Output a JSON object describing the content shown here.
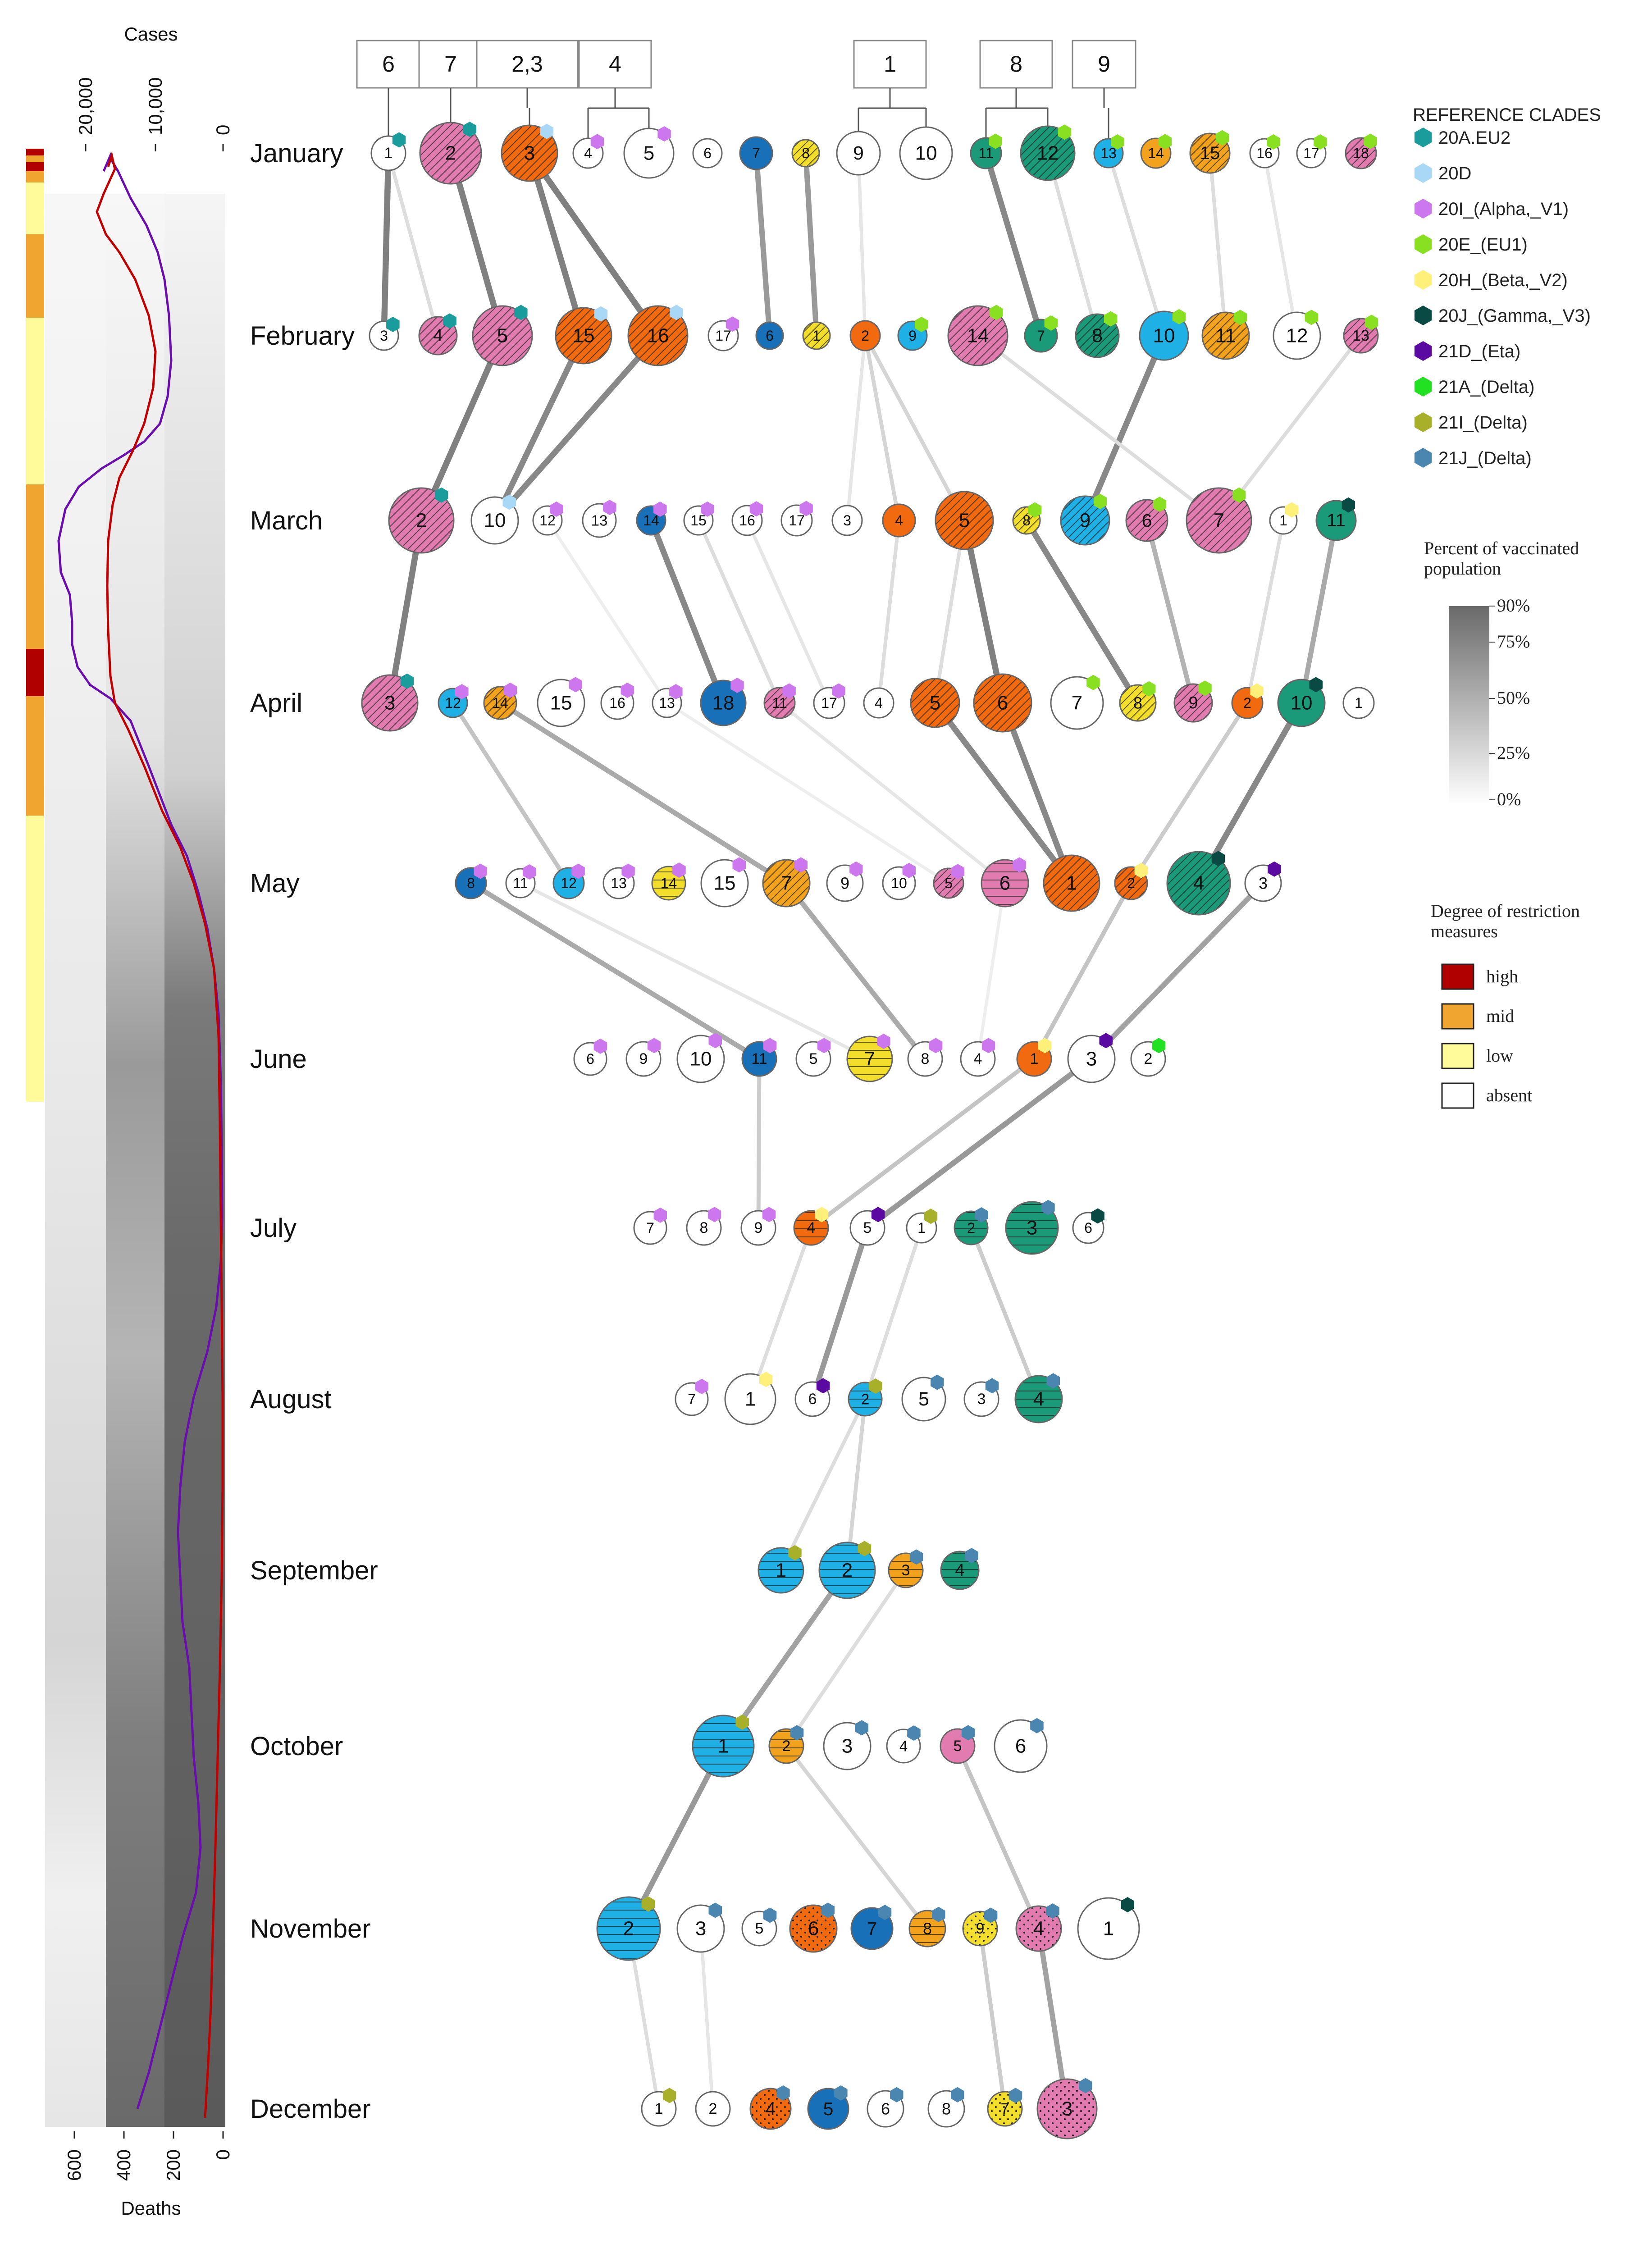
{
  "months": [
    "January",
    "February",
    "March",
    "April",
    "May",
    "June",
    "July",
    "August",
    "September",
    "October",
    "November",
    "December"
  ],
  "axes": {
    "cases_label": "Cases",
    "deaths_label": "Deaths",
    "cases_ticks": [
      "20,000",
      "10,000",
      "0"
    ],
    "deaths_ticks": [
      "600",
      "400",
      "200",
      "0"
    ]
  },
  "colors": {
    "cases_line": "#6a0dad",
    "deaths_line": "#c00000",
    "orange": "#f26a10",
    "pink": "#e27bb0",
    "teal": "#1a9a78",
    "sky": "#1fb0e6",
    "navy": "#1770b8",
    "gold": "#f2a21c",
    "yellow": "#f4de2c"
  },
  "groups": [
    {
      "label": "6"
    },
    {
      "label": "7"
    },
    {
      "label": "2,3"
    },
    {
      "label": "4"
    },
    {
      "label": "1"
    },
    {
      "label": "8"
    },
    {
      "label": "9"
    }
  ],
  "legend_clades": {
    "title": "REFERENCE CLADES",
    "items": [
      {
        "name": "20A.EU2",
        "color": "#1a9c9c",
        "shape": "hexagon"
      },
      {
        "name": "20D",
        "color": "#a8d8f5",
        "shape": "hexagon"
      },
      {
        "name": "20I_(Alpha,_V1)",
        "color": "#cc77ee",
        "shape": "hexagon"
      },
      {
        "name": "20E_(EU1)",
        "color": "#88e020",
        "shape": "hexagon"
      },
      {
        "name": "20H_(Beta,_V2)",
        "color": "#fff07a",
        "shape": "hexagon"
      },
      {
        "name": "20J_(Gamma,_V3)",
        "color": "#0a4a44",
        "shape": "hexagon"
      },
      {
        "name": "21D_(Eta)",
        "color": "#5a0aa0",
        "shape": "hexagon"
      },
      {
        "name": "21A_(Delta)",
        "color": "#22e022",
        "shape": "hexagon"
      },
      {
        "name": "21I_(Delta)",
        "color": "#a8b02a",
        "shape": "hexagon"
      },
      {
        "name": "21J_(Delta)",
        "color": "#4a86b0",
        "shape": "hexagon"
      }
    ]
  },
  "legend_vaccinated": {
    "title_line1": "Percent of vaccinated",
    "title_line2": "population",
    "ticks": [
      "90%",
      "75%",
      "50%",
      "25%",
      "0%"
    ]
  },
  "legend_restriction": {
    "title_line1": "Degree of restriction",
    "title_line2": "measures",
    "items": [
      {
        "name": "high",
        "color": "#b00000"
      },
      {
        "name": "mid",
        "color": "#f0a530"
      },
      {
        "name": "low",
        "color": "#fffa9a"
      },
      {
        "name": "absent",
        "color": "#ffffff"
      }
    ]
  },
  "nodes": [
    {
      "id": "jan1",
      "label": "1"
    },
    {
      "id": "jan2",
      "label": "2"
    },
    {
      "id": "jan3",
      "label": "3"
    },
    {
      "id": "jan4",
      "label": "4"
    },
    {
      "id": "jan5",
      "label": "5"
    },
    {
      "id": "jan6",
      "label": "6"
    },
    {
      "id": "jan7",
      "label": "7"
    },
    {
      "id": "jan8",
      "label": "8"
    },
    {
      "id": "jan9",
      "label": "9"
    },
    {
      "id": "jan10",
      "label": "10"
    },
    {
      "id": "jan11",
      "label": "11"
    },
    {
      "id": "jan12",
      "label": "12"
    },
    {
      "id": "jan13",
      "label": "13"
    },
    {
      "id": "jan14",
      "label": "14"
    },
    {
      "id": "jan15",
      "label": "15"
    },
    {
      "id": "jan16",
      "label": "16"
    },
    {
      "id": "jan17",
      "label": "17"
    },
    {
      "id": "jan18",
      "label": "18"
    },
    {
      "id": "feb3",
      "label": "3"
    },
    {
      "id": "feb4",
      "label": "4"
    },
    {
      "id": "feb5",
      "label": "5"
    },
    {
      "id": "feb15",
      "label": "15"
    },
    {
      "id": "feb16",
      "label": "16"
    },
    {
      "id": "feb17",
      "label": "17"
    },
    {
      "id": "feb6",
      "label": "6"
    },
    {
      "id": "feb1",
      "label": "1"
    },
    {
      "id": "feb2",
      "label": "2"
    },
    {
      "id": "feb9",
      "label": "9"
    },
    {
      "id": "feb14",
      "label": "14"
    },
    {
      "id": "feb7",
      "label": "7"
    },
    {
      "id": "feb8",
      "label": "8"
    },
    {
      "id": "feb10",
      "label": "10"
    },
    {
      "id": "feb11",
      "label": "11"
    },
    {
      "id": "feb12",
      "label": "12"
    },
    {
      "id": "feb13",
      "label": "13"
    },
    {
      "id": "mar2",
      "label": "2"
    },
    {
      "id": "mar10",
      "label": "10"
    },
    {
      "id": "mar12",
      "label": "12"
    },
    {
      "id": "mar13",
      "label": "13"
    },
    {
      "id": "mar14",
      "label": "14"
    },
    {
      "id": "mar15",
      "label": "15"
    },
    {
      "id": "mar16",
      "label": "16"
    },
    {
      "id": "mar17",
      "label": "17"
    },
    {
      "id": "mar3",
      "label": "3"
    },
    {
      "id": "mar4",
      "label": "4"
    },
    {
      "id": "mar5",
      "label": "5"
    },
    {
      "id": "mar8",
      "label": "8"
    },
    {
      "id": "mar9",
      "label": "9"
    },
    {
      "id": "mar6",
      "label": "6"
    },
    {
      "id": "mar7",
      "label": "7"
    },
    {
      "id": "mar1",
      "label": "1"
    },
    {
      "id": "mar11",
      "label": "11"
    },
    {
      "id": "apr3",
      "label": "3"
    },
    {
      "id": "apr12",
      "label": "12"
    },
    {
      "id": "apr14",
      "label": "14"
    },
    {
      "id": "apr15",
      "label": "15"
    },
    {
      "id": "apr16",
      "label": "16"
    },
    {
      "id": "apr13",
      "label": "13"
    },
    {
      "id": "apr18",
      "label": "18"
    },
    {
      "id": "apr11",
      "label": "11"
    },
    {
      "id": "apr17",
      "label": "17"
    },
    {
      "id": "apr4",
      "label": "4"
    },
    {
      "id": "apr5",
      "label": "5"
    },
    {
      "id": "apr6",
      "label": "6"
    },
    {
      "id": "apr7",
      "label": "7"
    },
    {
      "id": "apr8",
      "label": "8"
    },
    {
      "id": "apr9",
      "label": "9"
    },
    {
      "id": "apr2",
      "label": "2"
    },
    {
      "id": "apr10",
      "label": "10"
    },
    {
      "id": "apr1",
      "label": "1"
    },
    {
      "id": "may8",
      "label": "8"
    },
    {
      "id": "may11",
      "label": "11"
    },
    {
      "id": "may12",
      "label": "12"
    },
    {
      "id": "may13",
      "label": "13"
    },
    {
      "id": "may14",
      "label": "14"
    },
    {
      "id": "may15",
      "label": "15"
    },
    {
      "id": "may7",
      "label": "7"
    },
    {
      "id": "may9",
      "label": "9"
    },
    {
      "id": "may10",
      "label": "10"
    },
    {
      "id": "may5",
      "label": "5"
    },
    {
      "id": "may6",
      "label": "6"
    },
    {
      "id": "may1",
      "label": "1"
    },
    {
      "id": "may2",
      "label": "2"
    },
    {
      "id": "may4",
      "label": "4"
    },
    {
      "id": "may3",
      "label": "3"
    },
    {
      "id": "jun6",
      "label": "6"
    },
    {
      "id": "jun9",
      "label": "9"
    },
    {
      "id": "jun10",
      "label": "10"
    },
    {
      "id": "jun11",
      "label": "11"
    },
    {
      "id": "jun5",
      "label": "5"
    },
    {
      "id": "jun7",
      "label": "7"
    },
    {
      "id": "jun8",
      "label": "8"
    },
    {
      "id": "jun4",
      "label": "4"
    },
    {
      "id": "jun1",
      "label": "1"
    },
    {
      "id": "jun3",
      "label": "3"
    },
    {
      "id": "jun2",
      "label": "2"
    },
    {
      "id": "jul7",
      "label": "7"
    },
    {
      "id": "jul8",
      "label": "8"
    },
    {
      "id": "jul9",
      "label": "9"
    },
    {
      "id": "jul4",
      "label": "4"
    },
    {
      "id": "jul5",
      "label": "5"
    },
    {
      "id": "jul1",
      "label": "1"
    },
    {
      "id": "jul2",
      "label": "2"
    },
    {
      "id": "jul3",
      "label": "3"
    },
    {
      "id": "jul6",
      "label": "6"
    },
    {
      "id": "aug7",
      "label": "7"
    },
    {
      "id": "aug1",
      "label": "1"
    },
    {
      "id": "aug6",
      "label": "6"
    },
    {
      "id": "aug2",
      "label": "2"
    },
    {
      "id": "aug5",
      "label": "5"
    },
    {
      "id": "aug3",
      "label": "3"
    },
    {
      "id": "aug4",
      "label": "4"
    },
    {
      "id": "sep1",
      "label": "1"
    },
    {
      "id": "sep2",
      "label": "2"
    },
    {
      "id": "sep3",
      "label": "3"
    },
    {
      "id": "sep4",
      "label": "4"
    },
    {
      "id": "oct1",
      "label": "1"
    },
    {
      "id": "oct2",
      "label": "2"
    },
    {
      "id": "oct3",
      "label": "3"
    },
    {
      "id": "oct4",
      "label": "4"
    },
    {
      "id": "oct5",
      "label": "5"
    },
    {
      "id": "oct6",
      "label": "6"
    },
    {
      "id": "nov2",
      "label": "2"
    },
    {
      "id": "nov3",
      "label": "3"
    },
    {
      "id": "nov5",
      "label": "5"
    },
    {
      "id": "nov6",
      "label": "6"
    },
    {
      "id": "nov7",
      "label": "7"
    },
    {
      "id": "nov8",
      "label": "8"
    },
    {
      "id": "nov9",
      "label": "9"
    },
    {
      "id": "nov4",
      "label": "4"
    },
    {
      "id": "nov1",
      "label": "1"
    },
    {
      "id": "dec1",
      "label": "1"
    },
    {
      "id": "dec2",
      "label": "2"
    },
    {
      "id": "dec4",
      "label": "4"
    },
    {
      "id": "dec5",
      "label": "5"
    },
    {
      "id": "dec6",
      "label": "6"
    },
    {
      "id": "dec8",
      "label": "8"
    },
    {
      "id": "dec7",
      "label": "7"
    },
    {
      "id": "dec3",
      "label": "3"
    }
  ]
}
